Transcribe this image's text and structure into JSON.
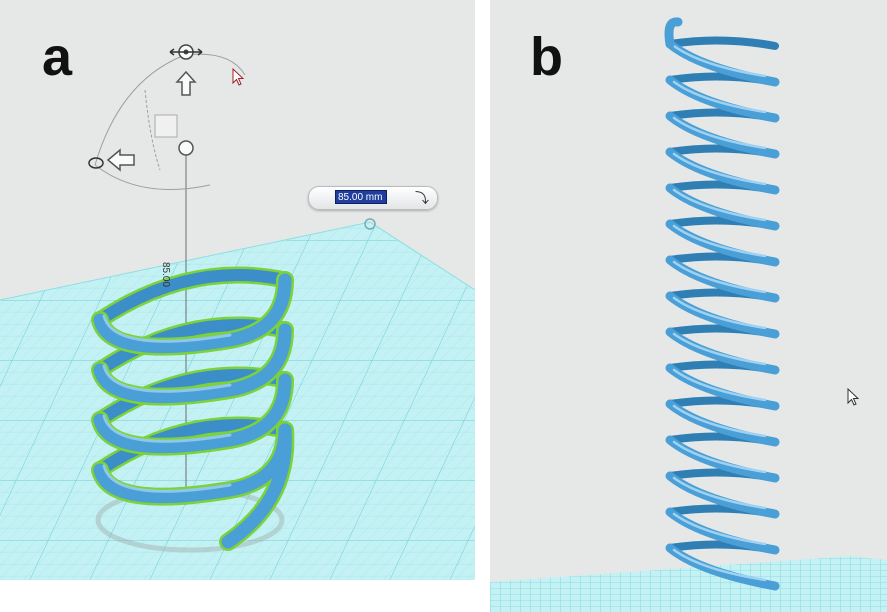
{
  "panels": {
    "a": {
      "label": "a"
    },
    "b": {
      "label": "b"
    }
  },
  "dimension_widget": {
    "value": "85.00 mm",
    "apply_icon": "check-arrow-icon"
  },
  "spring_height_label": "85.00",
  "gizmo": {
    "icons": [
      "move-icon",
      "rotate-icon",
      "arrow-up-icon",
      "arrow-left-icon"
    ]
  },
  "colors": {
    "background": "#e6e8e8",
    "grid_fill": "#bff0f2",
    "grid_line": "#6fd4da",
    "spring": "#4a9fd6",
    "spring_highlight": "#8cc8ef",
    "selection_outline": "#7bd23a",
    "input_highlight": "#1f3e9e"
  }
}
